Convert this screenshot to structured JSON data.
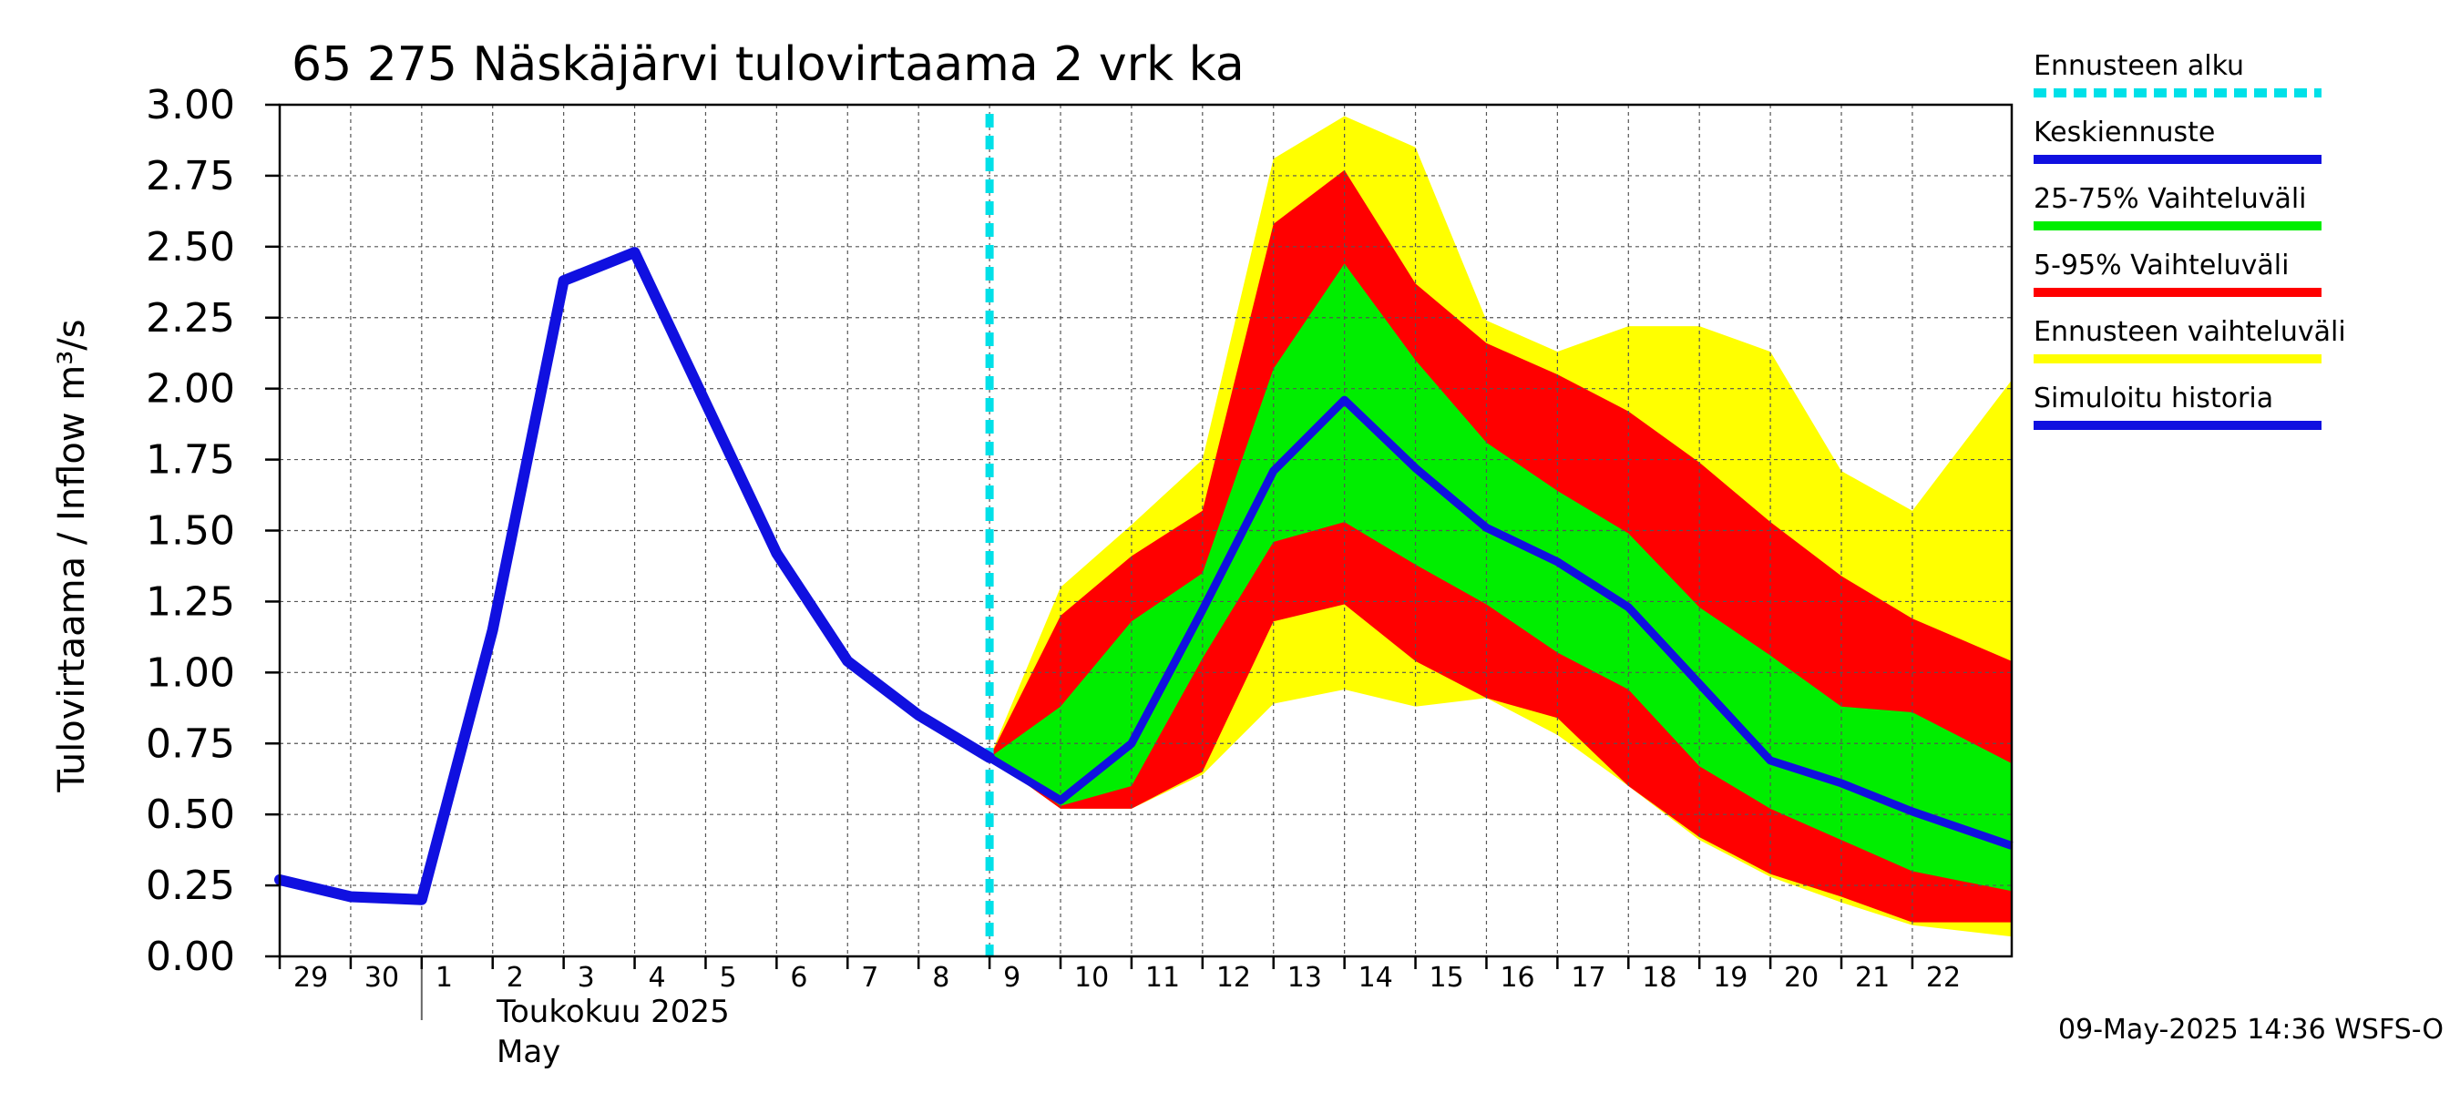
{
  "chart_data": {
    "type": "line",
    "title": "65 275 Näskäjärvi tulovirtaama 2 vrk ka",
    "ylabel": "Tulovirtaama / Inflow    m³/s",
    "ylim": [
      0,
      3
    ],
    "yticks": [
      "0.00",
      "0.25",
      "0.50",
      "0.75",
      "1.00",
      "1.25",
      "1.50",
      "1.75",
      "2.00",
      "2.25",
      "2.50",
      "2.75",
      "3.00"
    ],
    "xlim_days": [
      0,
      24.4
    ],
    "xticks": [
      {
        "label": "29",
        "day": 0
      },
      {
        "label": "30",
        "day": 1
      },
      {
        "label": "1",
        "day": 2
      },
      {
        "label": "2",
        "day": 3
      },
      {
        "label": "3",
        "day": 4
      },
      {
        "label": "4",
        "day": 5
      },
      {
        "label": "5",
        "day": 6
      },
      {
        "label": "6",
        "day": 7
      },
      {
        "label": "7",
        "day": 8
      },
      {
        "label": "8",
        "day": 9
      },
      {
        "label": "9",
        "day": 10
      },
      {
        "label": "10",
        "day": 11
      },
      {
        "label": "11",
        "day": 12
      },
      {
        "label": "12",
        "day": 13
      },
      {
        "label": "13",
        "day": 14
      },
      {
        "label": "14",
        "day": 15
      },
      {
        "label": "15",
        "day": 16
      },
      {
        "label": "16",
        "day": 17
      },
      {
        "label": "17",
        "day": 18
      },
      {
        "label": "18",
        "day": 19
      },
      {
        "label": "19",
        "day": 20
      },
      {
        "label": "20",
        "day": 21
      },
      {
        "label": "21",
        "day": 22
      },
      {
        "label": "22",
        "day": 23
      }
    ],
    "month_label_fi": "Toukokuu  2025",
    "month_label_en": "May",
    "forecast_start_day": 10,
    "history": {
      "x": [
        0,
        1,
        2,
        3,
        4,
        5,
        6,
        7,
        8,
        9,
        10
      ],
      "y": [
        0.27,
        0.21,
        0.2,
        1.15,
        2.38,
        2.48,
        1.95,
        1.42,
        1.04,
        0.85,
        0.7
      ]
    },
    "median": {
      "x": [
        10,
        11,
        12,
        13,
        14,
        15,
        16,
        17,
        18,
        19,
        20,
        21,
        22,
        23,
        24.4
      ],
      "y": [
        0.7,
        0.55,
        0.75,
        1.22,
        1.71,
        1.96,
        1.72,
        1.51,
        1.39,
        1.23,
        0.96,
        0.69,
        0.61,
        0.51,
        0.39
      ]
    },
    "band_25_75": {
      "x": [
        10,
        11,
        12,
        13,
        14,
        15,
        16,
        17,
        18,
        19,
        20,
        21,
        22,
        23,
        24.4
      ],
      "low": [
        0.7,
        0.53,
        0.6,
        1.05,
        1.46,
        1.53,
        1.38,
        1.24,
        1.07,
        0.94,
        0.67,
        0.52,
        0.41,
        0.3,
        0.23
      ],
      "high": [
        0.7,
        0.88,
        1.18,
        1.35,
        2.07,
        2.44,
        2.1,
        1.81,
        1.64,
        1.49,
        1.23,
        1.06,
        0.88,
        0.86,
        0.68
      ]
    },
    "band_5_95": {
      "x": [
        10,
        11,
        12,
        13,
        14,
        15,
        16,
        17,
        18,
        19,
        20,
        21,
        22,
        23,
        24.4
      ],
      "low": [
        0.7,
        0.52,
        0.52,
        0.65,
        1.18,
        1.24,
        1.04,
        0.91,
        0.84,
        0.6,
        0.42,
        0.29,
        0.21,
        0.12,
        0.12
      ],
      "high": [
        0.7,
        1.2,
        1.41,
        1.57,
        2.58,
        2.77,
        2.37,
        2.16,
        2.05,
        1.92,
        1.74,
        1.53,
        1.34,
        1.19,
        1.04
      ]
    },
    "band_full": {
      "x": [
        10,
        11,
        12,
        13,
        14,
        15,
        16,
        17,
        18,
        19,
        20,
        21,
        22,
        23,
        24.4
      ],
      "low": [
        0.7,
        0.52,
        0.52,
        0.64,
        0.89,
        0.94,
        0.88,
        0.91,
        0.78,
        0.6,
        0.41,
        0.28,
        0.19,
        0.11,
        0.07
      ],
      "high": [
        0.7,
        1.3,
        1.52,
        1.75,
        2.81,
        2.96,
        2.85,
        2.24,
        2.13,
        2.22,
        2.22,
        2.13,
        1.71,
        1.57,
        2.03
      ]
    },
    "colors": {
      "history": "#1010e0",
      "median": "#1010e0",
      "band_25_75": "#00ee00",
      "band_5_95": "#ff0000",
      "band_full": "#ffff00",
      "forecast_line": "#00e0e8"
    },
    "legend": [
      {
        "label": "Ennusteen alku",
        "color": "#00e0e8",
        "style": "dashed"
      },
      {
        "label": "Keskiennuste",
        "color": "#1010e0",
        "style": "solid"
      },
      {
        "label": "25-75% Vaihteluväli",
        "color": "#00ee00",
        "style": "solid"
      },
      {
        "label": "5-95% Vaihteluväli",
        "color": "#ff0000",
        "style": "solid"
      },
      {
        "label": "Ennusteen vaihteluväli",
        "color": "#ffff00",
        "style": "solid"
      },
      {
        "label": "Simuloitu historia",
        "color": "#1010e0",
        "style": "solid"
      }
    ],
    "legend_position": "right",
    "grid": true
  },
  "footer": "09-May-2025 14:36 WSFS-O"
}
